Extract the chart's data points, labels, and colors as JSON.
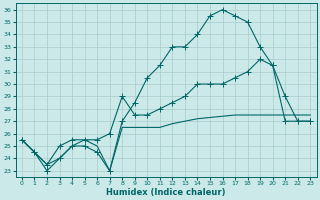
{
  "xlabel": "Humidex (Indice chaleur)",
  "bg_color": "#cce9e9",
  "line_color": "#006666",
  "grid_color": "#aacccc",
  "xlim": [
    -0.5,
    23.5
  ],
  "ylim": [
    22.5,
    36.5
  ],
  "yticks": [
    23,
    24,
    25,
    26,
    27,
    28,
    29,
    30,
    31,
    32,
    33,
    34,
    35,
    36
  ],
  "xticks": [
    0,
    1,
    2,
    3,
    4,
    5,
    6,
    7,
    8,
    9,
    10,
    11,
    12,
    13,
    14,
    15,
    16,
    17,
    18,
    19,
    20,
    21,
    22,
    23
  ],
  "line1_x": [
    0,
    1,
    2,
    3,
    4,
    5,
    6,
    7,
    8,
    9,
    10,
    11,
    12,
    13,
    14,
    15,
    16,
    17,
    18,
    19,
    20,
    21,
    22,
    23
  ],
  "line1_y": [
    25.5,
    24.5,
    23.0,
    24.0,
    25.0,
    25.0,
    24.5,
    23.0,
    27.0,
    28.5,
    30.5,
    31.5,
    33.0,
    33.0,
    34.0,
    35.5,
    36.0,
    35.5,
    35.0,
    33.0,
    31.5,
    29.0,
    27.0,
    27.0
  ],
  "line2_x": [
    0,
    1,
    2,
    3,
    4,
    5,
    6,
    7,
    8,
    9,
    10,
    11,
    12,
    13,
    14,
    15,
    16,
    17,
    18,
    19,
    20,
    21,
    22,
    23
  ],
  "line2_y": [
    25.5,
    24.5,
    23.5,
    25.0,
    25.5,
    25.5,
    25.5,
    26.0,
    29.0,
    27.5,
    27.5,
    28.0,
    28.5,
    29.0,
    30.0,
    30.0,
    30.0,
    30.5,
    31.0,
    32.0,
    31.5,
    27.0,
    27.0,
    27.0
  ],
  "line3_x": [
    0,
    1,
    2,
    3,
    4,
    5,
    6,
    7,
    8,
    9,
    10,
    11,
    12,
    13,
    14,
    15,
    16,
    17,
    18,
    19,
    20,
    21,
    22,
    23
  ],
  "line3_y": [
    25.5,
    24.5,
    23.5,
    24.0,
    25.0,
    25.5,
    25.0,
    23.0,
    26.5,
    26.5,
    26.5,
    26.5,
    26.8,
    27.0,
    27.2,
    27.3,
    27.4,
    27.5,
    27.5,
    27.5,
    27.5,
    27.5,
    27.5,
    27.5
  ]
}
